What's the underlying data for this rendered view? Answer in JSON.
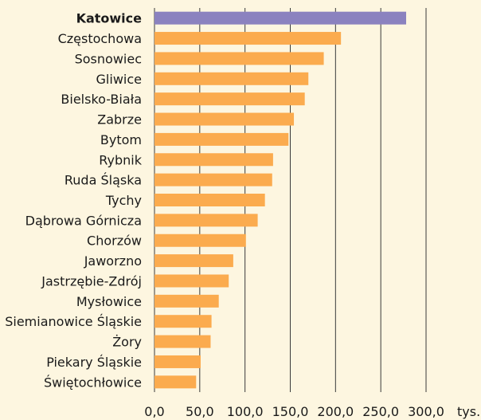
{
  "chart_data": {
    "type": "bar",
    "orientation": "horizontal",
    "categories": [
      "Katowice",
      "Częstochowa",
      "Sosnowiec",
      "Gliwice",
      "Bielsko-Biała",
      "Zabrze",
      "Bytom",
      "Rybnik",
      "Ruda Śląska",
      "Tychy",
      "Dąbrowa Górnicza",
      "Chorzów",
      "Jaworzno",
      "Jastrzębie-Zdrój",
      "Mysłowice",
      "Siemianowice Śląskie",
      "Żory",
      "Piekary Śląskie",
      "Świętochłowice"
    ],
    "values": [
      278,
      206,
      187,
      170,
      166,
      154,
      148,
      131,
      130,
      122,
      114,
      101,
      87,
      82,
      71,
      63,
      62,
      51,
      46
    ],
    "highlight_category": "Katowice",
    "colors": {
      "default_bar": "#fbab4e",
      "highlight_bar": "#8b82bf",
      "grid": "#3a3a3a",
      "background": "#fdf6e0"
    },
    "x_ticks": [
      "0,0",
      "50,0",
      "100,0",
      "150,0",
      "200,0",
      "250,0",
      "300,0"
    ],
    "x_unit": "tys.",
    "xlim": [
      0,
      300
    ],
    "grid": true
  }
}
